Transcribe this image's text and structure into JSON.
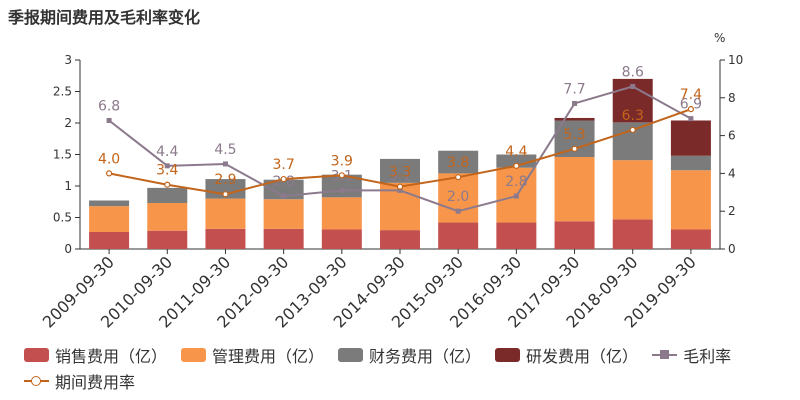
{
  "title": "季报期间费用及毛利率变化",
  "chart_data": {
    "type": "bar",
    "stacked": true,
    "categories": [
      "2009-09-30",
      "2010-09-30",
      "2011-09-30",
      "2012-09-30",
      "2013-09-30",
      "2014-09-30",
      "2015-09-30",
      "2016-09-30",
      "2017-09-30",
      "2018-09-30",
      "2019-09-30"
    ],
    "series": [
      {
        "name": "销售费用（亿）",
        "color": "#c44f4f",
        "values": [
          0.27,
          0.29,
          0.32,
          0.32,
          0.31,
          0.3,
          0.42,
          0.42,
          0.44,
          0.47,
          0.31
        ]
      },
      {
        "name": "管理费用（亿）",
        "color": "#f7964a",
        "values": [
          0.41,
          0.44,
          0.48,
          0.47,
          0.51,
          0.75,
          0.78,
          0.87,
          1.02,
          0.94,
          0.94
        ]
      },
      {
        "name": "财务费用（亿）",
        "color": "#7b7b7b",
        "values": [
          0.09,
          0.24,
          0.31,
          0.31,
          0.36,
          0.38,
          0.36,
          0.21,
          0.58,
          0.6,
          0.23
        ]
      },
      {
        "name": "研发费用（亿）",
        "color": "#7b2a2a",
        "values": [
          0,
          0,
          0,
          0,
          0,
          0,
          0,
          0,
          0.04,
          0.69,
          0.56
        ]
      }
    ],
    "line_series": [
      {
        "name": "毛利率",
        "color": "#8c7a8c",
        "marker": "square",
        "values": [
          6.8,
          4.4,
          4.5,
          2.8,
          3.1,
          3.1,
          2.0,
          2.8,
          7.7,
          8.6,
          6.9
        ],
        "labels": [
          "6.8",
          "4.4",
          "4.5",
          "2.8",
          "3.1",
          "3.1",
          "2.0",
          "2.8",
          "7.7",
          "8.6",
          "6.9"
        ]
      },
      {
        "name": "期间费用率",
        "color": "#c2641a",
        "marker": "circle",
        "values": [
          4.0,
          3.4,
          2.9,
          3.7,
          3.9,
          3.3,
          3.8,
          4.4,
          5.3,
          6.3,
          7.4
        ],
        "labels": [
          "4.0",
          "3.4",
          "2.9",
          "3.7",
          "3.9",
          "3.3",
          "3.8",
          "4.4",
          "5.3",
          "6.3",
          "7.4"
        ]
      }
    ],
    "y_left": {
      "min": 0,
      "max": 3,
      "ticks": [
        "0",
        "0.5",
        "1",
        "1.5",
        "2",
        "2.5",
        "3"
      ]
    },
    "y_right": {
      "min": 0,
      "max": 10,
      "ticks": [
        "0",
        "2",
        "4",
        "6",
        "8",
        "10"
      ],
      "unit": "%"
    },
    "grid": false,
    "legend_position": "bottom"
  }
}
